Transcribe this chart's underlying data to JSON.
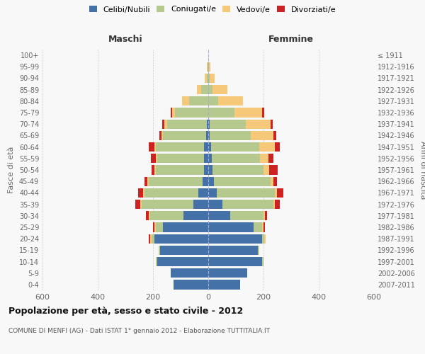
{
  "age_groups": [
    "0-4",
    "5-9",
    "10-14",
    "15-19",
    "20-24",
    "25-29",
    "30-34",
    "35-39",
    "40-44",
    "45-49",
    "50-54",
    "55-59",
    "60-64",
    "65-69",
    "70-74",
    "75-79",
    "80-84",
    "85-89",
    "90-94",
    "95-99",
    "100+"
  ],
  "birth_years": [
    "2007-2011",
    "2002-2006",
    "1997-2001",
    "1992-1996",
    "1987-1991",
    "1982-1986",
    "1977-1981",
    "1972-1976",
    "1967-1971",
    "1962-1966",
    "1957-1961",
    "1952-1956",
    "1947-1951",
    "1942-1946",
    "1937-1941",
    "1932-1936",
    "1927-1931",
    "1922-1926",
    "1917-1921",
    "1912-1916",
    "≤ 1911"
  ],
  "males": {
    "celibi": [
      125,
      135,
      185,
      175,
      195,
      165,
      90,
      55,
      35,
      20,
      15,
      15,
      15,
      8,
      5,
      0,
      0,
      0,
      0,
      0,
      0
    ],
    "coniugati": [
      0,
      0,
      5,
      5,
      10,
      25,
      120,
      185,
      195,
      195,
      175,
      170,
      175,
      155,
      145,
      120,
      70,
      25,
      5,
      2,
      0
    ],
    "vedovi": [
      0,
      0,
      0,
      0,
      5,
      5,
      5,
      5,
      5,
      5,
      5,
      5,
      5,
      5,
      8,
      10,
      25,
      15,
      8,
      2,
      0
    ],
    "divorziati": [
      0,
      0,
      0,
      0,
      5,
      5,
      10,
      18,
      20,
      10,
      10,
      18,
      20,
      10,
      8,
      5,
      0,
      0,
      0,
      0,
      0
    ]
  },
  "females": {
    "nubili": [
      115,
      140,
      195,
      180,
      195,
      165,
      80,
      50,
      30,
      20,
      15,
      12,
      10,
      5,
      5,
      0,
      0,
      0,
      0,
      0,
      0
    ],
    "coniugate": [
      0,
      0,
      5,
      5,
      8,
      30,
      120,
      185,
      210,
      205,
      185,
      175,
      175,
      150,
      130,
      95,
      35,
      15,
      5,
      2,
      0
    ],
    "vedove": [
      0,
      0,
      0,
      0,
      5,
      5,
      5,
      5,
      8,
      12,
      20,
      30,
      55,
      80,
      90,
      100,
      90,
      55,
      18,
      5,
      0
    ],
    "divorziate": [
      0,
      0,
      0,
      0,
      0,
      5,
      8,
      20,
      25,
      12,
      30,
      18,
      20,
      10,
      8,
      8,
      0,
      0,
      0,
      0,
      0
    ]
  },
  "colors": {
    "celibi": "#4472a8",
    "coniugati": "#b5c98e",
    "vedovi": "#f5c87a",
    "divorziati": "#cc2222"
  },
  "legend_labels": [
    "Celibi/Nubili",
    "Coniugati/e",
    "Vedovi/e",
    "Divorziati/e"
  ],
  "title": "Popolazione per età, sesso e stato civile - 2012",
  "subtitle": "COMUNE DI MENFI (AG) - Dati ISTAT 1° gennaio 2012 - Elaborazione TUTTITALIA.IT",
  "xlabel_left": "Maschi",
  "xlabel_right": "Femmine",
  "ylabel_left": "Fasce di età",
  "ylabel_right": "Anni di nascita",
  "xlim": 600,
  "background_color": "#f8f8f8",
  "grid_color": "#cccccc"
}
